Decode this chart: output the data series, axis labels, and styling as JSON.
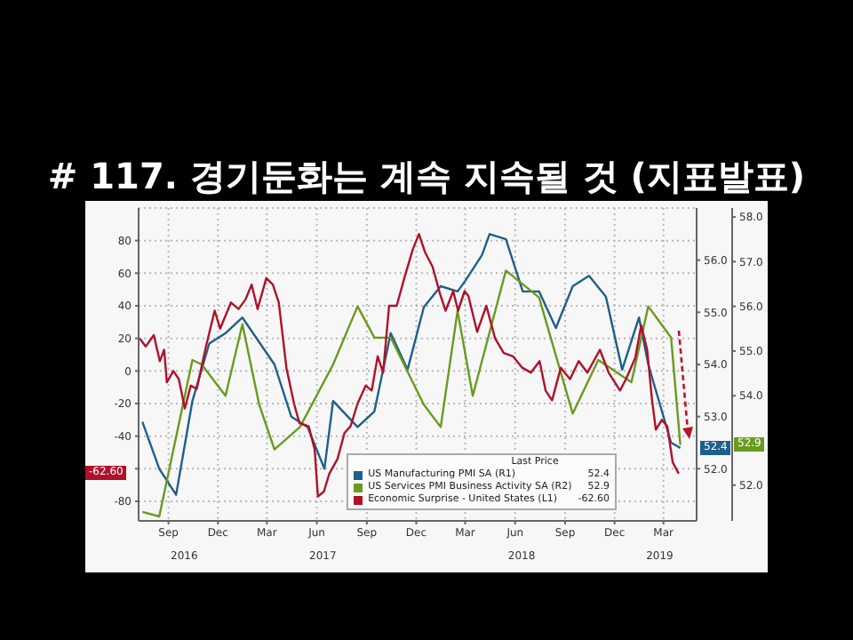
{
  "chart_data": {
    "type": "line",
    "title": "# 117. 경기둔화는 계속 지속될 것 (지표발표)",
    "xlim": [
      "2016-07-08",
      "2019-05-01"
    ],
    "xticks": [
      {
        "value": "2016-09-01",
        "label": "Sep"
      },
      {
        "value": "2016-12-01",
        "label": "Dec"
      },
      {
        "value": "2017-03-01",
        "label": "Mar"
      },
      {
        "value": "2017-06-01",
        "label": "Jun"
      },
      {
        "value": "2017-09-01",
        "label": "Sep"
      },
      {
        "value": "2017-12-01",
        "label": "Dec"
      },
      {
        "value": "2018-03-01",
        "label": "Mar"
      },
      {
        "value": "2018-06-01",
        "label": "Jun"
      },
      {
        "value": "2018-09-01",
        "label": "Sep"
      },
      {
        "value": "2018-12-01",
        "label": "Dec"
      },
      {
        "value": "2019-03-01",
        "label": "Mar"
      }
    ],
    "x2lim": [
      "2016-07-08",
      "2019-05-01"
    ],
    "x2ticks": [
      {
        "value": "2016-09-30",
        "label": "2016"
      },
      {
        "value": "2017-06-12",
        "label": "2017"
      },
      {
        "value": "2018-06-13",
        "label": "2018"
      },
      {
        "value": "2019-02-22",
        "label": "2019"
      }
    ],
    "ylim": [
      -92,
      100
    ],
    "yticks": [
      -80,
      {
        "value": -60,
        "label": null
      },
      -40,
      -20,
      0,
      20,
      40,
      60,
      80
    ],
    "y2lim": [
      51.0,
      57.0
    ],
    "y2ticks": [
      {
        "value": 52,
        "label": "52.0"
      },
      {
        "value": 53,
        "label": "53.0"
      },
      {
        "value": 54,
        "label": "54.0"
      },
      {
        "value": 55,
        "label": "55.0"
      },
      {
        "value": 56,
        "label": "56.0"
      }
    ],
    "y3lim": [
      51.2,
      58.2
    ],
    "y3ticks": [
      {
        "value": 52,
        "label": "52.0"
      },
      {
        "value": 54,
        "label": "54.0"
      },
      {
        "value": 55,
        "label": "55.0"
      },
      {
        "value": 56,
        "label": "56.0"
      },
      {
        "value": 57,
        "label": "57.0"
      },
      {
        "value": 58,
        "label": "58.0"
      }
    ],
    "grid": true,
    "legend": "bottom right",
    "legend_title": "Last Price",
    "annotations": [
      "52.4",
      "52.9",
      "-62.60"
    ],
    "series": [
      {
        "name": "US Manufacturing PMI SA  (R1)",
        "color": "#1f5f8b",
        "axis": "y2",
        "x": [
          "2016-07-15",
          "2016-08-15",
          "2016-09-15",
          "2016-10-15",
          "2016-11-15",
          "2016-12-15",
          "2017-01-15",
          "2017-03-15",
          "2017-04-15",
          "2017-05-15",
          "2017-06-15",
          "2017-07-01",
          "2017-08-15",
          "2017-09-15",
          "2017-10-15",
          "2017-11-15",
          "2017-12-15",
          "2018-01-15",
          "2018-02-15",
          "2018-03-01",
          "2018-04-01",
          "2018-04-15",
          "2018-05-15",
          "2018-06-15",
          "2018-07-15",
          "2018-08-15",
          "2018-09-15",
          "2018-10-15",
          "2018-11-15",
          "2018-12-15",
          "2019-01-15",
          "2019-02-01",
          "2019-03-15",
          "2019-04-01"
        ],
        "values": [
          52.9,
          52.0,
          51.5,
          53.3,
          54.4,
          54.6,
          54.9,
          54.0,
          53.0,
          52.8,
          52.0,
          53.3,
          52.8,
          53.1,
          54.6,
          53.9,
          55.1,
          55.5,
          55.4,
          55.6,
          56.1,
          56.5,
          56.4,
          55.4,
          55.4,
          54.7,
          55.5,
          55.7,
          55.3,
          53.9,
          54.9,
          54.0,
          52.5,
          52.4
        ]
      },
      {
        "name": "US Services PMI Business Activity SA  (R2)",
        "color": "#6a9a1f",
        "axis": "y3",
        "x": [
          "2016-07-15",
          "2016-08-15",
          "2016-10-15",
          "2016-11-01",
          "2016-12-15",
          "2017-01-15",
          "2017-02-15",
          "2017-03-15",
          "2017-05-01",
          "2017-07-01",
          "2017-08-15",
          "2017-09-15",
          "2017-10-15",
          "2017-12-15",
          "2018-01-15",
          "2018-02-15",
          "2018-03-15",
          "2018-05-15",
          "2018-07-15",
          "2018-09-15",
          "2018-11-01",
          "2019-01-01",
          "2019-02-01",
          "2019-03-15",
          "2019-04-01"
        ],
        "values": [
          51.4,
          51.3,
          54.8,
          54.7,
          54.0,
          55.6,
          53.8,
          52.8,
          53.3,
          54.7,
          56.0,
          55.3,
          55.3,
          53.8,
          53.3,
          55.9,
          54.0,
          56.8,
          56.2,
          53.6,
          54.8,
          54.3,
          56.0,
          55.3,
          52.9
        ]
      },
      {
        "name": "Economic Surprise - United States  (L1)",
        "color": "#b0102a",
        "x": [
          "2016-07-10",
          "2016-07-21",
          "2016-08-05",
          "2016-08-16",
          "2016-08-24",
          "2016-08-29",
          "2016-09-10",
          "2016-09-20",
          "2016-10-01",
          "2016-10-12",
          "2016-10-23",
          "2016-11-09",
          "2016-11-25",
          "2016-12-05",
          "2016-12-25",
          "2017-01-08",
          "2017-01-21",
          "2017-02-01",
          "2017-02-12",
          "2017-02-28",
          "2017-03-12",
          "2017-03-23",
          "2017-04-06",
          "2017-04-20",
          "2017-04-30",
          "2017-05-17",
          "2017-05-28",
          "2017-06-03",
          "2017-06-14",
          "2017-06-24",
          "2017-07-09",
          "2017-07-22",
          "2017-08-02",
          "2017-08-15",
          "2017-08-30",
          "2017-09-10",
          "2017-09-21",
          "2017-10-01",
          "2017-10-12",
          "2017-10-26",
          "2017-11-09",
          "2017-11-25",
          "2017-12-06",
          "2017-12-17",
          "2017-12-31",
          "2018-01-14",
          "2018-01-24",
          "2018-02-07",
          "2018-02-16",
          "2018-02-28",
          "2018-03-07",
          "2018-03-23",
          "2018-04-09",
          "2018-04-25",
          "2018-05-11",
          "2018-05-28",
          "2018-06-14",
          "2018-06-30",
          "2018-07-16",
          "2018-07-27",
          "2018-08-08",
          "2018-08-24",
          "2018-09-10",
          "2018-09-26",
          "2018-10-12",
          "2018-11-04",
          "2018-11-20",
          "2018-12-11",
          "2018-12-22",
          "2019-01-08",
          "2019-01-19",
          "2019-01-30",
          "2019-02-08",
          "2019-02-15",
          "2019-02-26",
          "2019-03-08",
          "2019-03-18",
          "2019-03-29"
        ],
        "values": [
          20,
          15,
          22,
          6,
          13,
          -7,
          0,
          -5,
          -23,
          -9,
          -11,
          15,
          37,
          26,
          42,
          38,
          44,
          53,
          38,
          57,
          53,
          42,
          2,
          -20,
          -32,
          -34,
          -48,
          -77,
          -74,
          -63,
          -54,
          -38,
          -34,
          -20,
          -9,
          -12,
          9,
          -1,
          40,
          40,
          57,
          75,
          84,
          73,
          64,
          47,
          37,
          49,
          37,
          49,
          46,
          24,
          40,
          20,
          11,
          9,
          2,
          -1,
          6,
          -12,
          -18,
          2,
          -5,
          6,
          -1,
          13,
          -1,
          -12,
          -5,
          8,
          28,
          13,
          -18,
          -36,
          -30,
          -34,
          -56,
          -63
        ]
      }
    ]
  }
}
